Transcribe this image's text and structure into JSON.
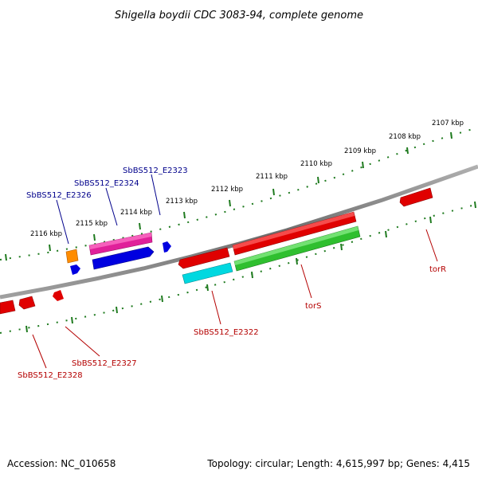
{
  "title": "Shigella boydii CDC 3083-94, complete genome",
  "footer": {
    "accession": "Accession: NC_010658",
    "topology": "Topology: circular; Length: 4,615,997 bp; Genes: 4,415"
  },
  "colors": {
    "backbone": "#8c8c8c",
    "tick": "#1e7a1e",
    "blue_label": "#00008b",
    "red_label": "#b40000"
  },
  "kbp_labels": [
    "2107 kbp",
    "2108 kbp",
    "2109 kbp",
    "2110 kbp",
    "2111 kbp",
    "2112 kbp",
    "2113 kbp",
    "2114 kbp",
    "2115 kbp",
    "2116 kbp"
  ],
  "gene_labels": {
    "SbBS512_E2323": "SbBS512_E2323",
    "SbBS512_E2324": "SbBS512_E2324",
    "SbBS512_E2326": "SbBS512_E2326",
    "SbBS512_E2322": "SbBS512_E2322",
    "torS": "torS",
    "torR": "torR",
    "SbBS512_E2327": "SbBS512_E2327",
    "SbBS512_E2328": "SbBS512_E2328"
  }
}
